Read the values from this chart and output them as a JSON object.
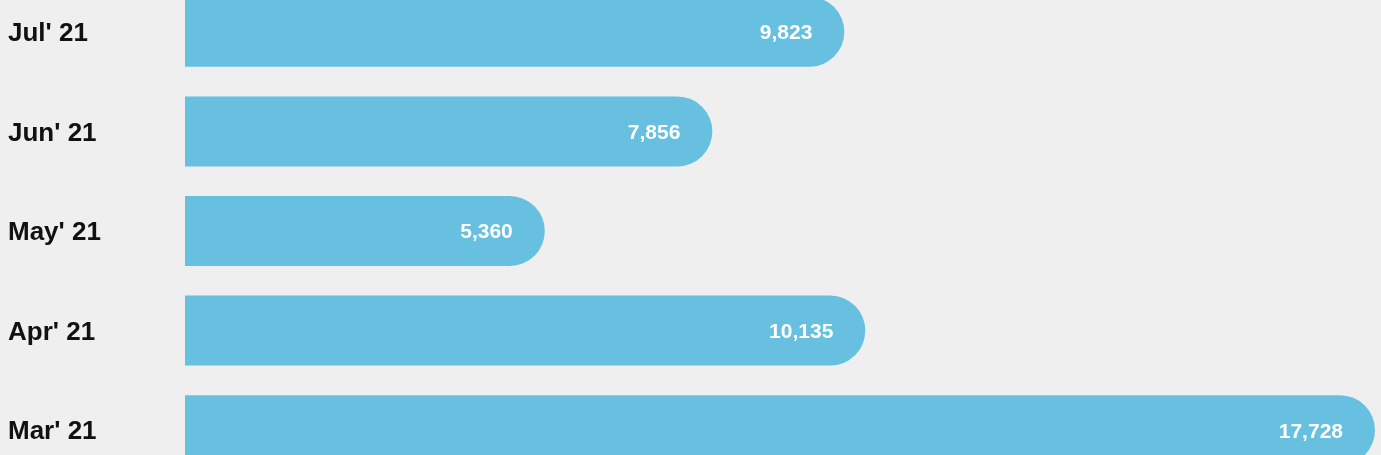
{
  "chart_data": {
    "type": "bar",
    "orientation": "horizontal",
    "categories": [
      "Jul' 21",
      "Jun' 21",
      "May' 21",
      "Apr' 21",
      "Mar' 21"
    ],
    "values": [
      9823,
      7856,
      5360,
      10135,
      17728
    ],
    "value_labels": [
      "9,823",
      "7,856",
      "5,360",
      "10,135",
      "17,728"
    ],
    "color": "#67c0df"
  }
}
